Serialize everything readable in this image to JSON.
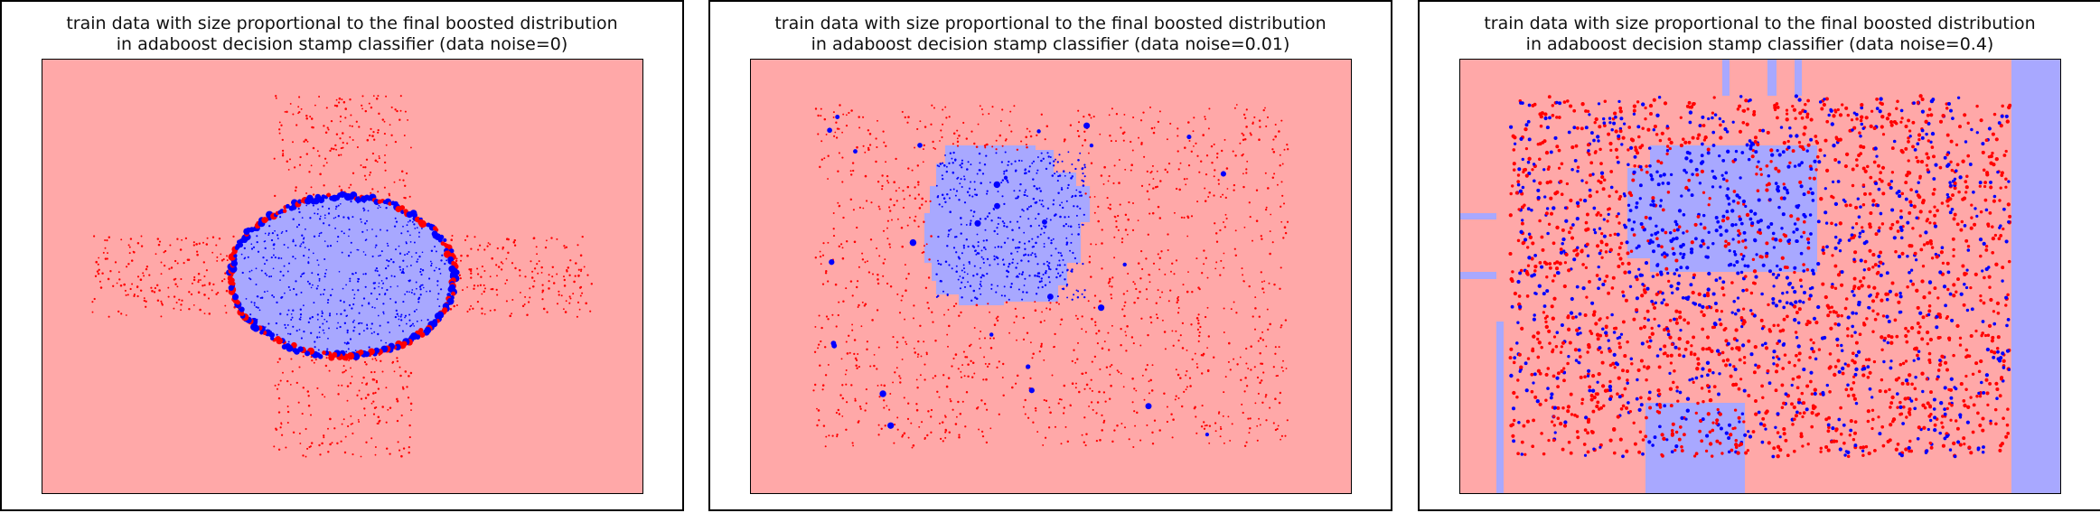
{
  "colors": {
    "red_region": "#ffa8a8",
    "blue_region": "#a8a8ff",
    "red_point": "#ff0000",
    "blue_point": "#0000ff"
  },
  "chart_data": [
    {
      "type": "scatter",
      "title_line1": "train data with size proportional to the final boosted distribution",
      "title_line2": "in adaboost decision stamp classifier (data noise=0)",
      "noise": 0,
      "xlim": [
        -2.4,
        2.4
      ],
      "ylim": [
        -2.4,
        2.4
      ],
      "grid": false,
      "blue_region": "ellipse",
      "clusters": [
        {
          "class": "red",
          "x": [
            -2.0,
            -0.6
          ],
          "y": [
            -0.45,
            0.45
          ],
          "n": 220,
          "note": "left band"
        },
        {
          "class": "red",
          "x": [
            0.6,
            2.0
          ],
          "y": [
            -0.45,
            0.45
          ],
          "n": 220,
          "note": "right band"
        },
        {
          "class": "red",
          "x": [
            -0.55,
            0.55
          ],
          "y": [
            0.85,
            2.0
          ],
          "n": 180,
          "note": "top band"
        },
        {
          "class": "red",
          "x": [
            -0.55,
            0.55
          ],
          "y": [
            -2.0,
            -0.85
          ],
          "n": 180,
          "note": "bottom band"
        },
        {
          "class": "blue",
          "x": [
            -0.95,
            0.95
          ],
          "y": [
            -0.7,
            0.7
          ],
          "n": 500,
          "note": "inner disk"
        }
      ]
    },
    {
      "type": "scatter",
      "title_line1": "train data with size proportional to the final boosted distribution",
      "title_line2": "in adaboost decision stamp classifier (data noise=0.01)",
      "noise": 0.01,
      "xlim": [
        -2.4,
        2.4
      ],
      "ylim": [
        -2.4,
        2.4
      ],
      "grid": false,
      "blue_region": "stepped-octagon",
      "clusters": [
        {
          "class": "red",
          "x": [
            -1.9,
            1.9
          ],
          "y": [
            -1.9,
            1.9
          ],
          "n": 1400,
          "note": "square field"
        },
        {
          "class": "blue",
          "x": [
            -0.95,
            0.95
          ],
          "y": [
            -0.75,
            0.75
          ],
          "n": 500,
          "note": "inner block"
        }
      ],
      "outliers_blue": 28
    },
    {
      "type": "scatter",
      "title_line1": "train data with size proportional to the final boosted distribution",
      "title_line2": "in adaboost decision stamp classifier (data noise=0.4)",
      "noise": 0.4,
      "xlim": [
        -2.4,
        2.4
      ],
      "ylim": [
        -2.4,
        2.4
      ],
      "grid": false,
      "blue_region": "fragmented",
      "clusters": [
        {
          "class": "mixed",
          "x": [
            -2.0,
            2.0
          ],
          "y": [
            -2.0,
            2.0
          ],
          "n": 2600,
          "note": "noisy field"
        }
      ]
    }
  ]
}
